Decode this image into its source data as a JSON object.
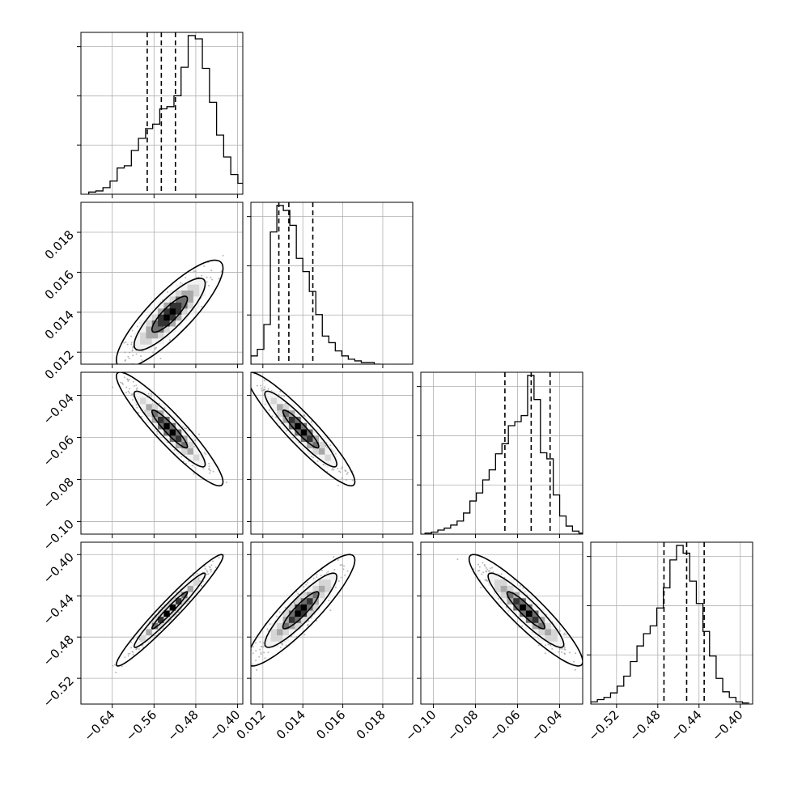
{
  "chart_data": {
    "type": "corner",
    "grid": true,
    "histogram_quantiles": [
      0.16,
      0.5,
      0.84
    ],
    "contour_levels": [
      0.393,
      0.865,
      0.989
    ],
    "colors": {
      "ink": "#000000",
      "grid": "#b0b0b0",
      "points": "#9a9a9a"
    },
    "parameters": [
      {
        "index": 0,
        "range": [
          -0.7,
          -0.39
        ],
        "ticks": [
          -0.64,
          -0.56,
          -0.48,
          -0.4
        ],
        "tick_labels": [
          "−0.64",
          "−0.56",
          "−0.48",
          "−0.40"
        ],
        "quantile_values": [
          -0.573,
          -0.546,
          -0.519
        ],
        "hist_edges_start": -0.685,
        "hist_bin_width": 0.0136,
        "hist_counts": [
          0.2,
          0.3,
          0.6,
          1.2,
          2.4,
          2.6,
          4.0,
          5.1,
          6.0,
          6.4,
          7.8,
          8.0,
          9.0,
          11.6,
          14.5,
          14.2,
          11.5,
          8.4,
          5.4,
          3.4,
          1.8,
          1.0,
          0.4,
          0.3
        ]
      },
      {
        "index": 1,
        "range": [
          0.0114,
          0.0195
        ],
        "ticks": [
          0.012,
          0.014,
          0.016,
          0.018
        ],
        "tick_labels": [
          "0.012",
          "0.014",
          "0.016",
          "0.018"
        ],
        "quantile_values": [
          0.0128,
          0.0133,
          0.0145
        ],
        "hist_edges_start": 0.0114,
        "hist_bin_width": 0.000325,
        "hist_counts": [
          0.5,
          0.9,
          2.4,
          8.0,
          9.6,
          9.3,
          8.4,
          6.4,
          5.6,
          4.4,
          3.0,
          1.7,
          1.3,
          0.8,
          0.5,
          0.3,
          0.2,
          0.1,
          0.1,
          0.0
        ]
      },
      {
        "index": 2,
        "range": [
          -0.106,
          -0.029
        ],
        "ticks": [
          -0.1,
          -0.08,
          -0.06,
          -0.04
        ],
        "tick_labels": [
          "−0.10",
          "−0.08",
          "−0.06",
          "−0.04"
        ],
        "quantile_values": [
          -0.066,
          -0.0535,
          -0.0445
        ],
        "hist_edges_start": -0.104,
        "hist_bin_width": 0.00305,
        "hist_counts": [
          0.1,
          0.2,
          0.4,
          0.6,
          0.9,
          1.3,
          2.1,
          3.3,
          4.1,
          5.4,
          6.4,
          8.0,
          9.0,
          10.8,
          11.2,
          11.8,
          15.8,
          13.4,
          8.1,
          7.5,
          3.9,
          1.8,
          0.8,
          0.3,
          0.1
        ]
      },
      {
        "index": 3,
        "range": [
          -0.545,
          -0.388
        ],
        "ticks": [
          -0.52,
          -0.48,
          -0.44,
          -0.4
        ],
        "tick_labels": [
          "−0.52",
          "−0.48",
          "−0.44",
          "−0.40"
        ],
        "quantile_values": [
          -0.474,
          -0.452,
          -0.435
        ],
        "hist_edges_start": -0.545,
        "hist_bin_width": 0.0064,
        "hist_counts": [
          0.2,
          0.4,
          0.6,
          1.0,
          1.6,
          2.5,
          3.8,
          5.2,
          6.3,
          7.0,
          8.6,
          10.4,
          12.9,
          14.2,
          13.5,
          11.0,
          9.0,
          6.5,
          4.3,
          2.3,
          1.1,
          0.6,
          0.2,
          0.1
        ]
      }
    ],
    "pairs": [
      {
        "row": 1,
        "col": 0,
        "mean": [
          -0.53,
          0.0139
        ],
        "sd": [
          0.034,
          0.0009
        ],
        "corr": 0.85
      },
      {
        "row": 2,
        "col": 0,
        "mean": [
          -0.53,
          -0.056
        ],
        "sd": [
          0.034,
          0.009
        ],
        "corr": -0.93
      },
      {
        "row": 2,
        "col": 1,
        "mean": [
          0.0139,
          -0.056
        ],
        "sd": [
          0.0009,
          0.009
        ],
        "corr": -0.93
      },
      {
        "row": 3,
        "col": 0,
        "mean": [
          -0.53,
          -0.454
        ],
        "sd": [
          0.034,
          0.018
        ],
        "corr": 0.97
      },
      {
        "row": 3,
        "col": 1,
        "mean": [
          0.0139,
          -0.454
        ],
        "sd": [
          0.0009,
          0.018
        ],
        "corr": 0.9
      },
      {
        "row": 3,
        "col": 2,
        "mean": [
          -0.056,
          -0.454
        ],
        "sd": [
          0.009,
          0.018
        ],
        "corr": -0.92
      }
    ]
  }
}
